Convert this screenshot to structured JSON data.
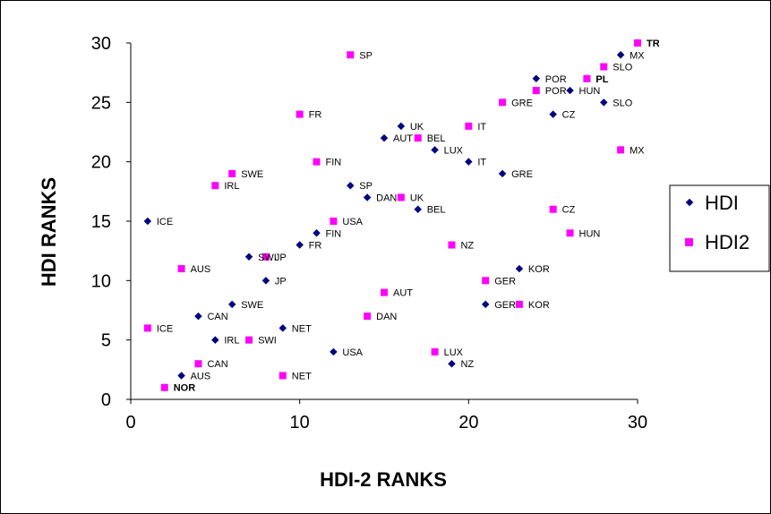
{
  "chart_data": {
    "type": "scatter",
    "title": "",
    "xlabel": "HDI-2 RANKS",
    "ylabel": "HDI RANKS",
    "xlim": [
      0,
      30
    ],
    "ylim": [
      0,
      30
    ],
    "x_ticks": [
      0,
      10,
      20,
      30
    ],
    "y_ticks": [
      0,
      5,
      10,
      15,
      20,
      25,
      30
    ],
    "grid": false,
    "legend_position": "right",
    "series": [
      {
        "name": "HDI",
        "marker": "diamond",
        "color": "#000080",
        "points": [
          {
            "label": "NOR",
            "x": 2,
            "y": 1
          },
          {
            "label": "AUS",
            "x": 3,
            "y": 2
          },
          {
            "label": "NZ",
            "x": 19,
            "y": 3
          },
          {
            "label": "USA",
            "x": 12,
            "y": 4
          },
          {
            "label": "IRL",
            "x": 5,
            "y": 5
          },
          {
            "label": "NET",
            "x": 9,
            "y": 6
          },
          {
            "label": "CAN",
            "x": 4,
            "y": 7
          },
          {
            "label": "SWE",
            "x": 6,
            "y": 8
          },
          {
            "label": "GER",
            "x": 21,
            "y": 8
          },
          {
            "label": "JP",
            "x": 8,
            "y": 10
          },
          {
            "label": "KOR",
            "x": 23,
            "y": 11
          },
          {
            "label": "SWI",
            "x": 7,
            "y": 12
          },
          {
            "label": "FR",
            "x": 10,
            "y": 13
          },
          {
            "label": "FIN",
            "x": 11,
            "y": 14
          },
          {
            "label": "ICE",
            "x": 1,
            "y": 15
          },
          {
            "label": "BEL",
            "x": 17,
            "y": 16
          },
          {
            "label": "DAN",
            "x": 14,
            "y": 17
          },
          {
            "label": "SP",
            "x": 13,
            "y": 18
          },
          {
            "label": "GRE",
            "x": 22,
            "y": 19
          },
          {
            "label": "IT",
            "x": 20,
            "y": 20
          },
          {
            "label": "LUX",
            "x": 18,
            "y": 21
          },
          {
            "label": "AUT",
            "x": 15,
            "y": 22
          },
          {
            "label": "UK",
            "x": 16,
            "y": 23
          },
          {
            "label": "CZ",
            "x": 25,
            "y": 24
          },
          {
            "label": "SLO",
            "x": 28,
            "y": 25
          },
          {
            "label": "HUN",
            "x": 26,
            "y": 26
          },
          {
            "label": "POR",
            "x": 24,
            "y": 27
          },
          {
            "label": "PL",
            "x": 27,
            "y": 27
          },
          {
            "label": "MX",
            "x": 29,
            "y": 29
          },
          {
            "label": "TR",
            "x": 30,
            "y": 30
          }
        ]
      },
      {
        "name": "HDI2",
        "marker": "square",
        "color": "#FF00FF",
        "points": [
          {
            "label": "",
            "x": 2,
            "y": 1
          },
          {
            "label": "NET",
            "x": 9,
            "y": 2
          },
          {
            "label": "CAN",
            "x": 4,
            "y": 3
          },
          {
            "label": "LUX",
            "x": 18,
            "y": 4
          },
          {
            "label": "SWI",
            "x": 7,
            "y": 5
          },
          {
            "label": "ICE",
            "x": 1,
            "y": 6
          },
          {
            "label": "DAN",
            "x": 14,
            "y": 7
          },
          {
            "label": "KOR",
            "x": 23,
            "y": 8
          },
          {
            "label": "AUT",
            "x": 15,
            "y": 9
          },
          {
            "label": "GER",
            "x": 21,
            "y": 10
          },
          {
            "label": "AUS",
            "x": 3,
            "y": 11
          },
          {
            "label": "JP",
            "x": 8,
            "y": 12
          },
          {
            "label": "NZ",
            "x": 19,
            "y": 13
          },
          {
            "label": "HUN",
            "x": 26,
            "y": 14
          },
          {
            "label": "USA",
            "x": 12,
            "y": 15
          },
          {
            "label": "CZ",
            "x": 25,
            "y": 16
          },
          {
            "label": "UK",
            "x": 16,
            "y": 17
          },
          {
            "label": "IRL",
            "x": 5,
            "y": 18
          },
          {
            "label": "SWE",
            "x": 6,
            "y": 19
          },
          {
            "label": "FIN",
            "x": 11,
            "y": 20
          },
          {
            "label": "MX",
            "x": 29,
            "y": 21
          },
          {
            "label": "BEL",
            "x": 17,
            "y": 22
          },
          {
            "label": "IT",
            "x": 20,
            "y": 23
          },
          {
            "label": "FR",
            "x": 10,
            "y": 24
          },
          {
            "label": "GRE",
            "x": 22,
            "y": 25
          },
          {
            "label": "POR",
            "x": 24,
            "y": 26
          },
          {
            "label": "PL",
            "x": 27,
            "y": 27
          },
          {
            "label": "SLO",
            "x": 28,
            "y": 28
          },
          {
            "label": "SP",
            "x": 13,
            "y": 29
          },
          {
            "label": "TR",
            "x": 30,
            "y": 30
          }
        ]
      }
    ]
  }
}
